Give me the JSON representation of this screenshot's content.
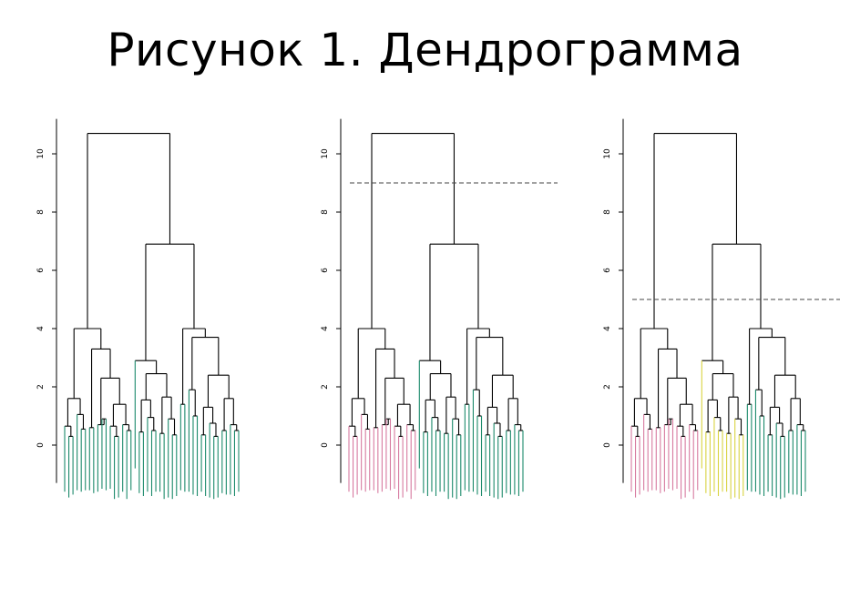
{
  "title": "Рисунок 1. Дендрограмма",
  "chart_data": [
    {
      "type": "dendrogram",
      "ylim": [
        -2,
        11
      ],
      "yticks": [
        0,
        2,
        4,
        6,
        8,
        10
      ],
      "xlabel": "",
      "ylabel": "",
      "cut_height": null,
      "clusters": 1,
      "cluster_colors": [
        "#1b8a6b"
      ],
      "merge_heights": [
        10.7,
        4.0,
        6.9,
        2.9,
        4.0,
        3.3,
        3.7,
        1.6,
        2.3,
        2.4,
        1.4
      ],
      "leaf_count": 42
    },
    {
      "type": "dendrogram",
      "ylim": [
        -2,
        11
      ],
      "yticks": [
        0,
        2,
        4,
        6,
        8,
        10
      ],
      "xlabel": "",
      "ylabel": "",
      "cut_height": 9.0,
      "clusters": 2,
      "cluster_colors": [
        "#d77aa0",
        "#1b8a6b"
      ],
      "merge_heights": [
        10.7,
        4.0,
        6.9,
        2.9,
        4.0,
        3.3,
        3.7,
        1.6,
        2.3,
        2.4,
        1.4
      ],
      "leaf_count": 42
    },
    {
      "type": "dendrogram",
      "ylim": [
        -2,
        11
      ],
      "yticks": [
        0,
        2,
        4,
        6,
        8,
        10
      ],
      "xlabel": "",
      "ylabel": "",
      "cut_height": 5.0,
      "clusters": 3,
      "cluster_colors": [
        "#d77aa0",
        "#d8d340",
        "#1b8a6b"
      ],
      "merge_heights": [
        10.7,
        4.0,
        6.9,
        2.9,
        4.0,
        3.3,
        3.7,
        1.6,
        2.3,
        2.4,
        1.4
      ],
      "leaf_count": 42
    }
  ]
}
